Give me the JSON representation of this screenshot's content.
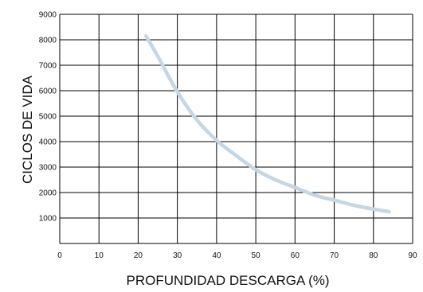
{
  "chart_data": {
    "type": "line",
    "title": "",
    "xlabel": "PROFUNDIDAD DESCARGA (%)",
    "ylabel": "CICLOS DE VIDA",
    "xlim": [
      0,
      90
    ],
    "ylim": [
      0,
      9000
    ],
    "x_ticks": [
      0,
      10,
      20,
      30,
      40,
      50,
      60,
      70,
      80,
      90
    ],
    "y_ticks": [
      1000,
      2000,
      3000,
      4000,
      5000,
      6000,
      7000,
      8000,
      9000
    ],
    "grid": true,
    "legend": "none",
    "series": [
      {
        "color": "#c5d6e4",
        "x": [
          22,
          25,
          30,
          35,
          40,
          45,
          50,
          55,
          60,
          65,
          70,
          75,
          80,
          84
        ],
        "y": [
          8150,
          7350,
          5950,
          4850,
          4050,
          3450,
          2900,
          2500,
          2200,
          1900,
          1700,
          1500,
          1350,
          1250
        ]
      }
    ]
  }
}
